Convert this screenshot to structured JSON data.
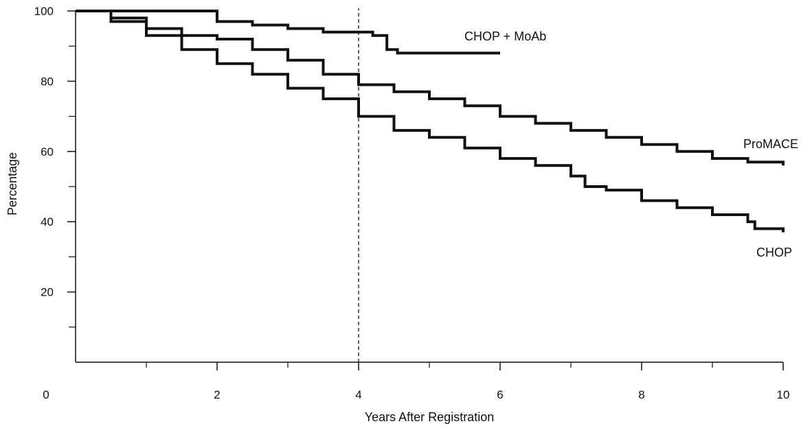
{
  "chart_data": {
    "type": "line",
    "title": "",
    "xlabel": "Years After Registration",
    "ylabel": "Percentage",
    "xlim": [
      0,
      10
    ],
    "ylim": [
      0,
      100
    ],
    "x_ticks": [
      0,
      2,
      4,
      6,
      8,
      10
    ],
    "x_minor_ticks": [
      1,
      3,
      5,
      7,
      9
    ],
    "y_ticks": [
      20,
      40,
      60,
      80,
      100
    ],
    "y_minor_ticks": [
      10,
      30,
      50,
      70,
      90
    ],
    "grid": false,
    "reference_line": {
      "x": 4,
      "style": "dashed"
    },
    "series": [
      {
        "name": "CHOP + MoAb",
        "x": [
          0,
          1.6,
          2.0,
          2.5,
          3.0,
          3.5,
          3.8,
          4.2,
          4.4,
          4.55,
          6.0
        ],
        "y": [
          100,
          100,
          97,
          96,
          95,
          94,
          94,
          93,
          89,
          88,
          88
        ]
      },
      {
        "name": "ProMACE",
        "x": [
          0,
          0.5,
          1.0,
          1.5,
          2.0,
          2.5,
          3.0,
          3.5,
          4.0,
          4.5,
          5.0,
          5.5,
          6.0,
          6.5,
          7.0,
          7.5,
          8.0,
          8.5,
          9.0,
          9.5,
          10.0
        ],
        "y": [
          100,
          98,
          95,
          93,
          92,
          89,
          86,
          82,
          79,
          77,
          75,
          73,
          70,
          68,
          66,
          64,
          62,
          60,
          58,
          57,
          56
        ]
      },
      {
        "name": "CHOP",
        "x": [
          0,
          0.5,
          1.0,
          1.5,
          2.0,
          2.5,
          3.0,
          3.5,
          4.0,
          4.5,
          5.0,
          5.5,
          6.0,
          6.5,
          7.0,
          7.2,
          7.5,
          8.0,
          8.5,
          9.0,
          9.5,
          9.6,
          10.0
        ],
        "y": [
          100,
          97,
          93,
          89,
          85,
          82,
          78,
          75,
          70,
          66,
          64,
          61,
          58,
          56,
          53,
          50,
          49,
          46,
          44,
          42,
          40,
          38,
          37
        ]
      }
    ]
  }
}
